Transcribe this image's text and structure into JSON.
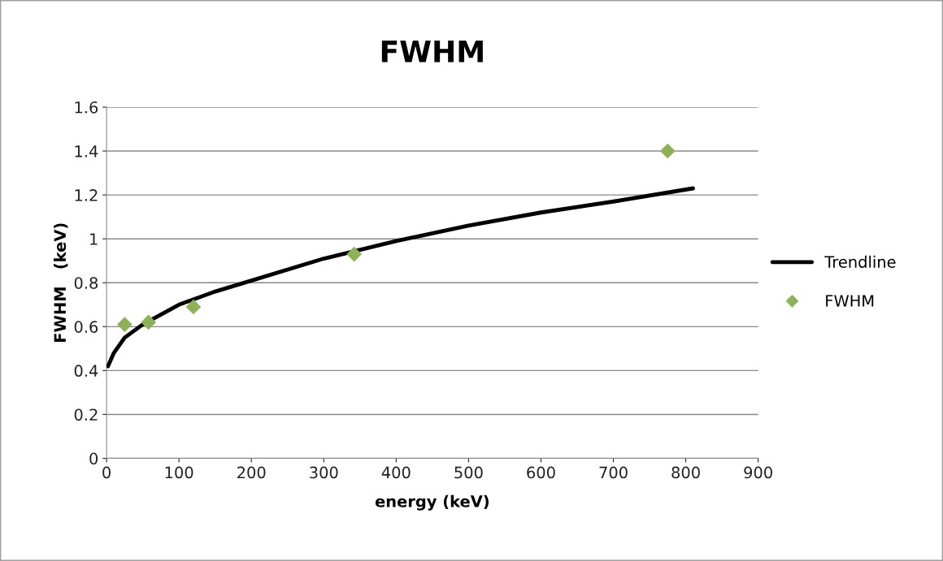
{
  "chart_data": {
    "type": "scatter",
    "title": "FWHM",
    "xlabel": "energy (keV)",
    "ylabel": "FWHM   (keV)",
    "xlim": [
      0,
      900
    ],
    "xticks": [
      0,
      100,
      200,
      300,
      400,
      500,
      600,
      700,
      800,
      900
    ],
    "ylim": [
      0,
      1.6
    ],
    "yticks": [
      0,
      0.2,
      0.4,
      0.6,
      0.8,
      1,
      1.2,
      1.4,
      1.6
    ],
    "grid": "y",
    "legend": "right",
    "series": [
      {
        "name": "Trendline",
        "type": "line",
        "color": "#000000",
        "marker": "none",
        "line_style": "solid",
        "x": [
          2,
          10,
          25,
          50,
          100,
          150,
          200,
          300,
          400,
          500,
          600,
          700,
          810
        ],
        "values": [
          0.42,
          0.48,
          0.55,
          0.61,
          0.7,
          0.76,
          0.81,
          0.91,
          0.99,
          1.06,
          1.12,
          1.17,
          1.23
        ]
      },
      {
        "name": "FWHM",
        "color": "#8db255",
        "marker": "diamond",
        "x": [
          25,
          58,
          120,
          342,
          775
        ],
        "values": [
          0.61,
          0.62,
          0.69,
          0.93,
          1.4
        ]
      }
    ]
  }
}
